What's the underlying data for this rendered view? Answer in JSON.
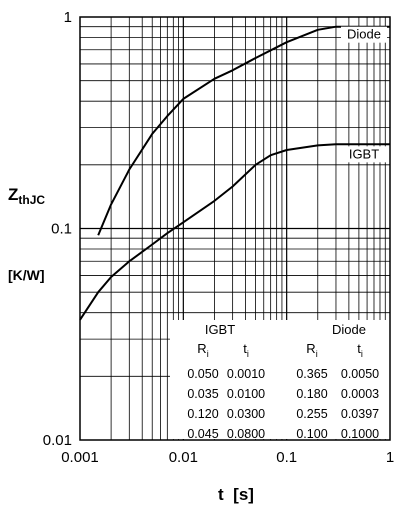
{
  "chart_data": {
    "type": "line",
    "title": "",
    "ylabel": "Z",
    "ylabel_sub": "thJC",
    "yunit": "[K/W]",
    "xlabel": "t  [s]",
    "xscale": "log",
    "yscale": "log",
    "xlim": [
      0.001,
      1
    ],
    "ylim": [
      0.01,
      1
    ],
    "x_tick_labels": [
      "0.001",
      "0.01",
      "0.1",
      "1"
    ],
    "y_tick_labels": [
      "0.01",
      "0.1",
      "1"
    ],
    "grid": true,
    "series": [
      {
        "name": "Diode",
        "x": [
          0.0015,
          0.002,
          0.003,
          0.005,
          0.007,
          0.01,
          0.02,
          0.03,
          0.05,
          0.1,
          0.2,
          0.3,
          0.5,
          1.0
        ],
        "y": [
          0.093,
          0.13,
          0.19,
          0.28,
          0.34,
          0.41,
          0.51,
          0.56,
          0.64,
          0.76,
          0.87,
          0.9,
          0.9,
          0.9
        ]
      },
      {
        "name": "IGBT",
        "x": [
          0.001,
          0.0015,
          0.002,
          0.003,
          0.005,
          0.007,
          0.01,
          0.02,
          0.03,
          0.05,
          0.07,
          0.1,
          0.2,
          0.3,
          0.5,
          1.0
        ],
        "y": [
          0.037,
          0.05,
          0.059,
          0.07,
          0.084,
          0.095,
          0.107,
          0.135,
          0.158,
          0.2,
          0.222,
          0.235,
          0.247,
          0.25,
          0.25,
          0.25
        ]
      }
    ],
    "parameter_table": {
      "groups": [
        "IGBT",
        "Diode"
      ],
      "headers": [
        "R",
        "t",
        "R",
        "t"
      ],
      "header_subscripts": [
        "i",
        "i",
        "i",
        "i"
      ],
      "rows": [
        [
          "0.050",
          "0.0010",
          "0.365",
          "0.0050"
        ],
        [
          "0.035",
          "0.0100",
          "0.180",
          "0.0003"
        ],
        [
          "0.120",
          "0.0300",
          "0.255",
          "0.0397"
        ],
        [
          "0.045",
          "0.0800",
          "0.100",
          "0.1000"
        ]
      ]
    }
  }
}
